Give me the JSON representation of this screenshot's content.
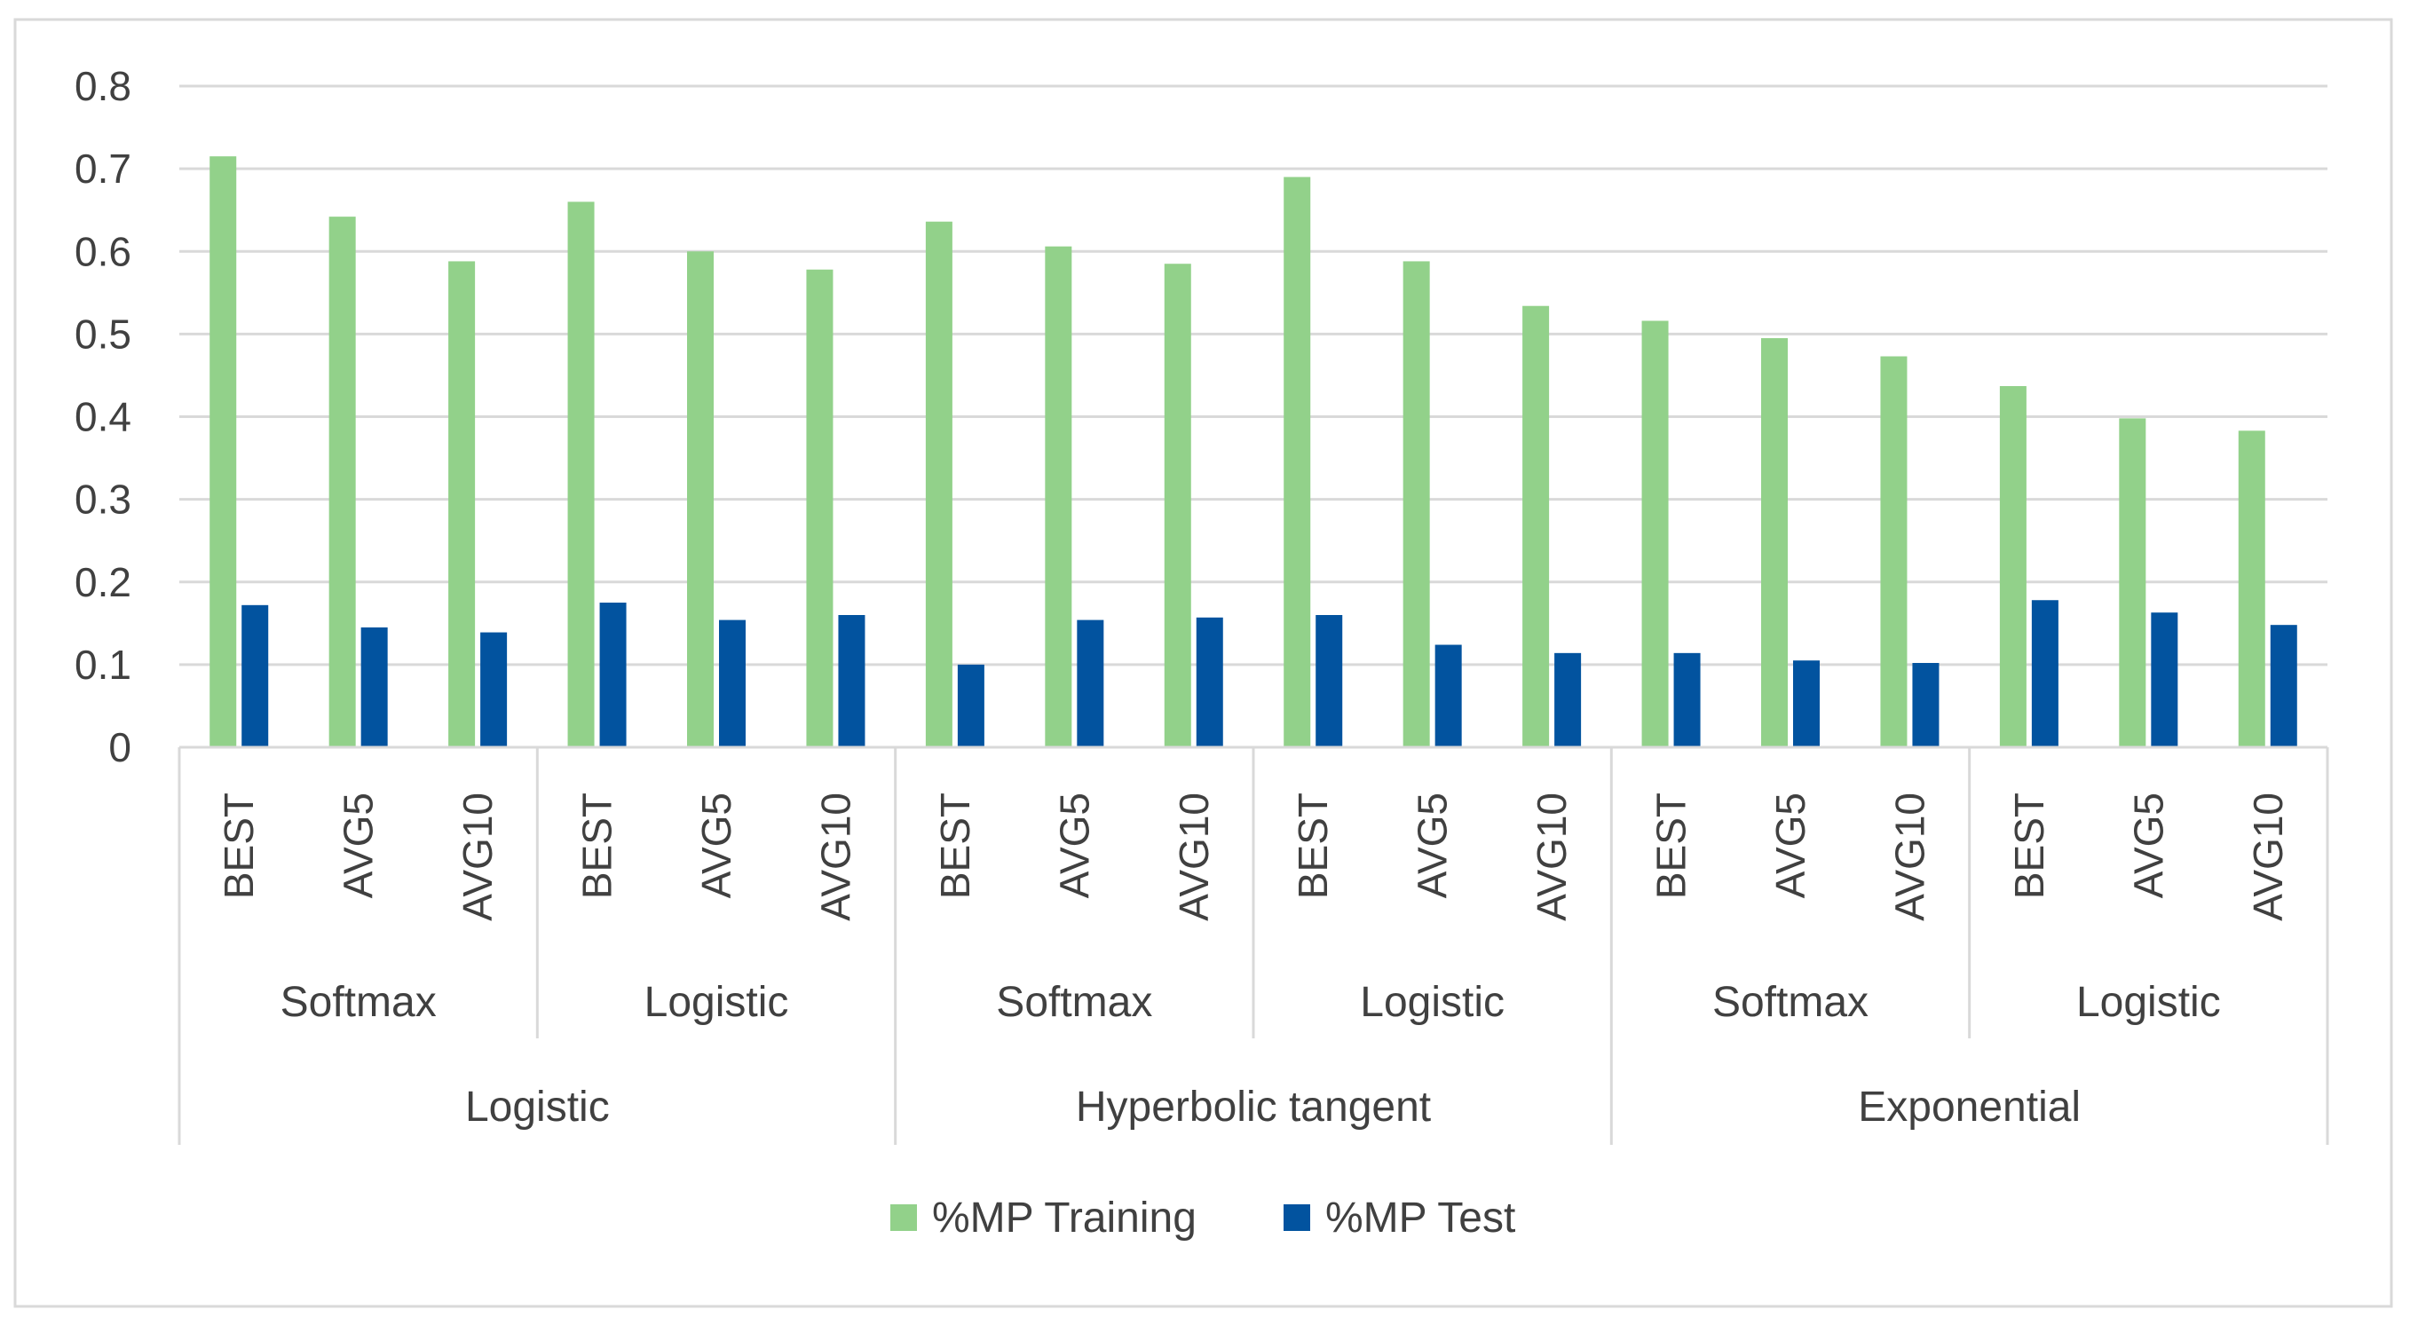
{
  "chart_data": {
    "type": "bar",
    "title": "",
    "xlabel": "",
    "ylabel": "",
    "ylim": [
      0,
      0.8
    ],
    "yticks": [
      "0",
      "0.1",
      "0.2",
      "0.3",
      "0.4",
      "0.5",
      "0.6",
      "0.7",
      "0.8"
    ],
    "ytick_values": [
      0,
      0.1,
      0.2,
      0.3,
      0.4,
      0.5,
      0.6,
      0.7,
      0.8
    ],
    "grid": true,
    "legend_position": "bottom-center",
    "categories": [
      "BEST",
      "AVG5",
      "AVG10",
      "BEST",
      "AVG5",
      "AVG10",
      "BEST",
      "AVG5",
      "AVG10",
      "BEST",
      "AVG5",
      "AVG10",
      "BEST",
      "AVG5",
      "AVG10",
      "BEST",
      "AVG5",
      "AVG10"
    ],
    "group_level1": [
      "Softmax",
      "Logistic",
      "Softmax",
      "Logistic",
      "Softmax",
      "Logistic"
    ],
    "group_level2": [
      "Logistic",
      "Hyperbolic tangent",
      "Exponential"
    ],
    "series": [
      {
        "name": "%MP Training",
        "color": "#92d18a",
        "values": [
          0.715,
          0.642,
          0.588,
          0.66,
          0.6,
          0.578,
          0.636,
          0.606,
          0.585,
          0.69,
          0.588,
          0.534,
          0.516,
          0.495,
          0.473,
          0.437,
          0.398,
          0.383
        ]
      },
      {
        "name": "%MP Test",
        "color": "#02539f",
        "values": [
          0.172,
          0.145,
          0.139,
          0.175,
          0.154,
          0.16,
          0.1,
          0.154,
          0.157,
          0.16,
          0.124,
          0.114,
          0.114,
          0.105,
          0.102,
          0.178,
          0.163,
          0.148
        ]
      }
    ]
  },
  "colors": {
    "gridline": "#d9d9d9",
    "axis_text": "#404040",
    "frame": "#d9d9d9"
  }
}
